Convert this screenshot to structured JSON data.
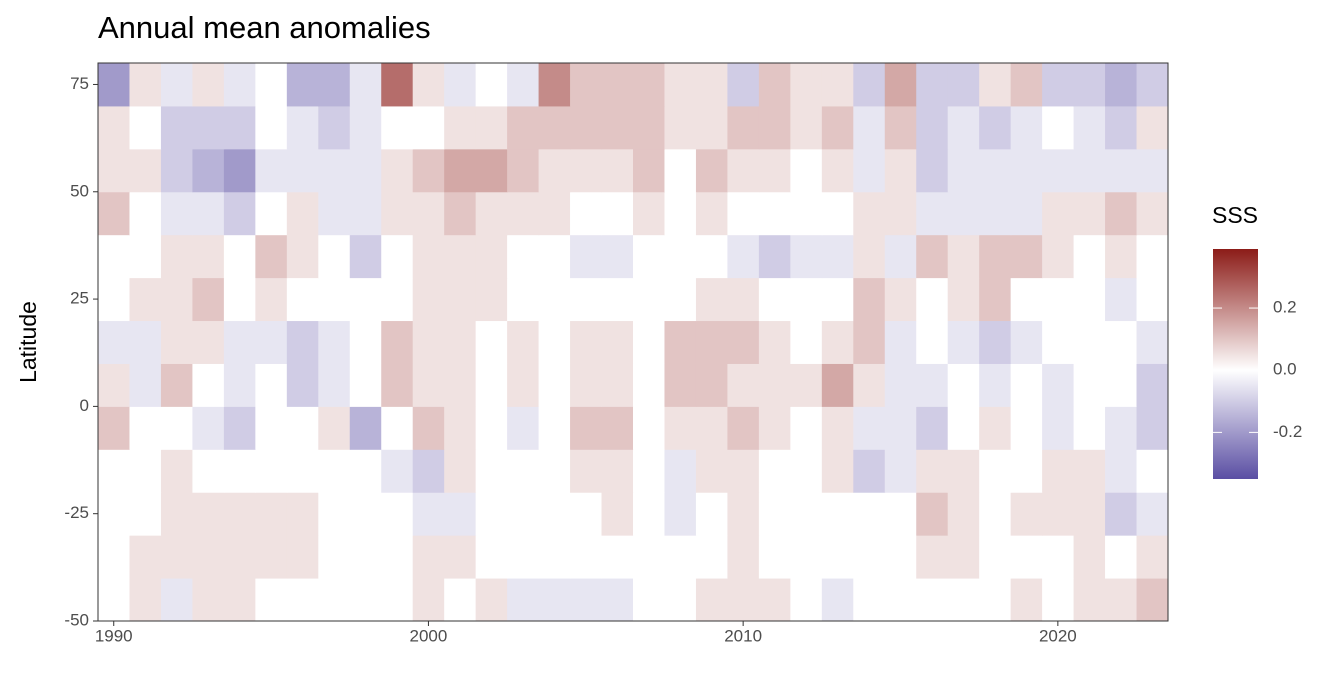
{
  "chart_data": {
    "type": "heatmap",
    "title": "Annual mean anomalies",
    "ylabel": "Latitude",
    "legend_title": "SSS",
    "x": [
      1990,
      1991,
      1992,
      1993,
      1994,
      1995,
      1996,
      1997,
      1998,
      1999,
      2000,
      2001,
      2002,
      2003,
      2004,
      2005,
      2006,
      2007,
      2008,
      2009,
      2010,
      2011,
      2012,
      2013,
      2014,
      2015,
      2016,
      2017,
      2018,
      2019,
      2020,
      2021,
      2022,
      2023
    ],
    "y": [
      -45,
      -35,
      -25,
      -15,
      -5,
      5,
      15,
      25,
      35,
      45,
      55,
      65,
      75
    ],
    "z": [
      [
        0.0,
        0.05,
        -0.05,
        0.05,
        0.05,
        0.0,
        0.0,
        0.0,
        0.0,
        0.0,
        0.05,
        0.0,
        0.05,
        -0.05,
        -0.05,
        -0.05,
        -0.05,
        0.0,
        0.0,
        0.05,
        0.05,
        0.05,
        0.0,
        -0.05,
        0.0,
        0.0,
        0.0,
        0.0,
        0.0,
        0.05,
        0.0,
        0.05,
        0.05,
        0.1
      ],
      [
        0.0,
        0.05,
        0.05,
        0.05,
        0.05,
        0.05,
        0.05,
        0.0,
        0.0,
        0.0,
        0.05,
        0.05,
        0.0,
        0.0,
        0.0,
        0.0,
        0.0,
        0.0,
        0.0,
        0.0,
        0.05,
        0.0,
        0.0,
        0.0,
        0.0,
        0.0,
        0.05,
        0.05,
        0.0,
        0.0,
        0.0,
        0.05,
        0.0,
        0.05
      ],
      [
        0.0,
        0.0,
        0.05,
        0.05,
        0.05,
        0.05,
        0.05,
        0.0,
        0.0,
        0.0,
        -0.05,
        -0.05,
        0.0,
        0.0,
        0.0,
        0.0,
        0.05,
        0.0,
        -0.05,
        0.0,
        0.05,
        0.0,
        0.0,
        0.0,
        0.0,
        0.0,
        0.1,
        0.05,
        0.0,
        0.05,
        0.05,
        0.05,
        -0.1,
        -0.05
      ],
      [
        0.0,
        0.0,
        0.05,
        0.0,
        0.0,
        0.0,
        0.0,
        0.0,
        0.0,
        -0.05,
        -0.1,
        0.05,
        0.0,
        0.0,
        0.0,
        0.05,
        0.05,
        0.0,
        -0.05,
        0.05,
        0.05,
        0.0,
        0.0,
        0.05,
        -0.1,
        -0.05,
        0.05,
        0.05,
        0.0,
        0.0,
        0.05,
        0.05,
        -0.05,
        0.0
      ],
      [
        0.1,
        0.0,
        0.0,
        -0.05,
        -0.1,
        0.0,
        0.0,
        0.05,
        -0.15,
        0.0,
        0.1,
        0.05,
        0.0,
        -0.05,
        0.0,
        0.1,
        0.1,
        0.0,
        0.05,
        0.05,
        0.1,
        0.05,
        0.0,
        0.05,
        -0.05,
        -0.05,
        -0.1,
        0.0,
        0.05,
        0.0,
        -0.05,
        0.0,
        -0.05,
        -0.1
      ],
      [
        0.05,
        -0.05,
        0.1,
        0.0,
        -0.05,
        0.0,
        -0.1,
        -0.05,
        0.0,
        0.1,
        0.05,
        0.05,
        0.0,
        0.05,
        0.0,
        0.05,
        0.05,
        0.0,
        0.1,
        0.1,
        0.05,
        0.05,
        0.05,
        0.15,
        0.05,
        -0.05,
        -0.05,
        0.0,
        -0.05,
        0.0,
        -0.05,
        0.0,
        0.0,
        -0.1
      ],
      [
        -0.05,
        -0.05,
        0.05,
        0.05,
        -0.05,
        -0.05,
        -0.1,
        -0.05,
        0.0,
        0.1,
        0.05,
        0.05,
        0.0,
        0.05,
        0.0,
        0.05,
        0.05,
        0.0,
        0.1,
        0.1,
        0.1,
        0.05,
        0.0,
        0.05,
        0.1,
        -0.05,
        0.0,
        -0.05,
        -0.1,
        -0.05,
        0.0,
        0.0,
        0.0,
        -0.05
      ],
      [
        0.0,
        0.05,
        0.05,
        0.1,
        0.0,
        0.05,
        0.0,
        0.0,
        0.0,
        0.0,
        0.05,
        0.05,
        0.05,
        0.0,
        0.0,
        0.0,
        0.0,
        0.0,
        0.0,
        0.05,
        0.05,
        0.0,
        0.0,
        0.0,
        0.1,
        0.05,
        0.0,
        0.05,
        0.1,
        0.0,
        0.0,
        0.0,
        -0.05,
        0.0
      ],
      [
        0.0,
        0.0,
        0.05,
        0.05,
        0.0,
        0.1,
        0.05,
        0.0,
        -0.1,
        0.0,
        0.05,
        0.05,
        0.05,
        0.0,
        0.0,
        -0.05,
        -0.05,
        0.0,
        0.0,
        0.0,
        -0.05,
        -0.1,
        -0.05,
        -0.05,
        0.05,
        -0.05,
        0.1,
        0.05,
        0.1,
        0.1,
        0.05,
        0.0,
        0.05,
        0.0
      ],
      [
        0.1,
        0.0,
        -0.05,
        -0.05,
        -0.1,
        0.0,
        0.05,
        -0.05,
        -0.05,
        0.05,
        0.05,
        0.1,
        0.05,
        0.05,
        0.05,
        0.0,
        0.0,
        0.05,
        0.0,
        0.05,
        0.0,
        0.0,
        0.0,
        0.0,
        0.05,
        0.05,
        -0.05,
        -0.05,
        -0.05,
        -0.05,
        0.05,
        0.05,
        0.1,
        0.05
      ],
      [
        0.05,
        0.05,
        -0.1,
        -0.15,
        -0.2,
        -0.05,
        -0.05,
        -0.05,
        -0.05,
        0.05,
        0.1,
        0.15,
        0.15,
        0.1,
        0.05,
        0.05,
        0.05,
        0.1,
        0.0,
        0.1,
        0.05,
        0.05,
        0.0,
        0.05,
        -0.05,
        0.05,
        -0.1,
        -0.05,
        -0.05,
        -0.05,
        -0.05,
        -0.05,
        -0.05,
        -0.05
      ],
      [
        0.05,
        0.0,
        -0.1,
        -0.1,
        -0.1,
        0.0,
        -0.05,
        -0.1,
        -0.05,
        0.0,
        0.0,
        0.05,
        0.05,
        0.1,
        0.1,
        0.1,
        0.1,
        0.1,
        0.05,
        0.05,
        0.1,
        0.1,
        0.05,
        0.1,
        -0.05,
        0.1,
        -0.1,
        -0.05,
        -0.1,
        -0.05,
        0.0,
        -0.05,
        -0.1,
        0.05
      ],
      [
        -0.2,
        0.05,
        -0.05,
        0.05,
        -0.05,
        0.0,
        -0.15,
        -0.15,
        -0.05,
        0.25,
        0.05,
        -0.05,
        0.0,
        -0.05,
        0.2,
        0.1,
        0.1,
        0.1,
        0.05,
        0.05,
        -0.1,
        0.1,
        0.05,
        0.05,
        -0.1,
        0.15,
        -0.1,
        -0.1,
        0.05,
        0.1,
        -0.1,
        -0.1,
        -0.15,
        -0.1
      ]
    ],
    "xlim": [
      1989.5,
      2023.5
    ],
    "ylim": [
      -50,
      80
    ],
    "xticks": [
      1990,
      2000,
      2010,
      2020
    ],
    "yticks": [
      -50,
      -25,
      0,
      25,
      50,
      75
    ],
    "zlim": [
      -0.35,
      0.39
    ],
    "zticks": [
      -0.2,
      {
        "value": 0,
        "label": "0.0"
      },
      0.2
    ],
    "colors": {
      "low": "#5a4ea3",
      "mid": "#ffffff",
      "high": "#8c1c18"
    }
  }
}
